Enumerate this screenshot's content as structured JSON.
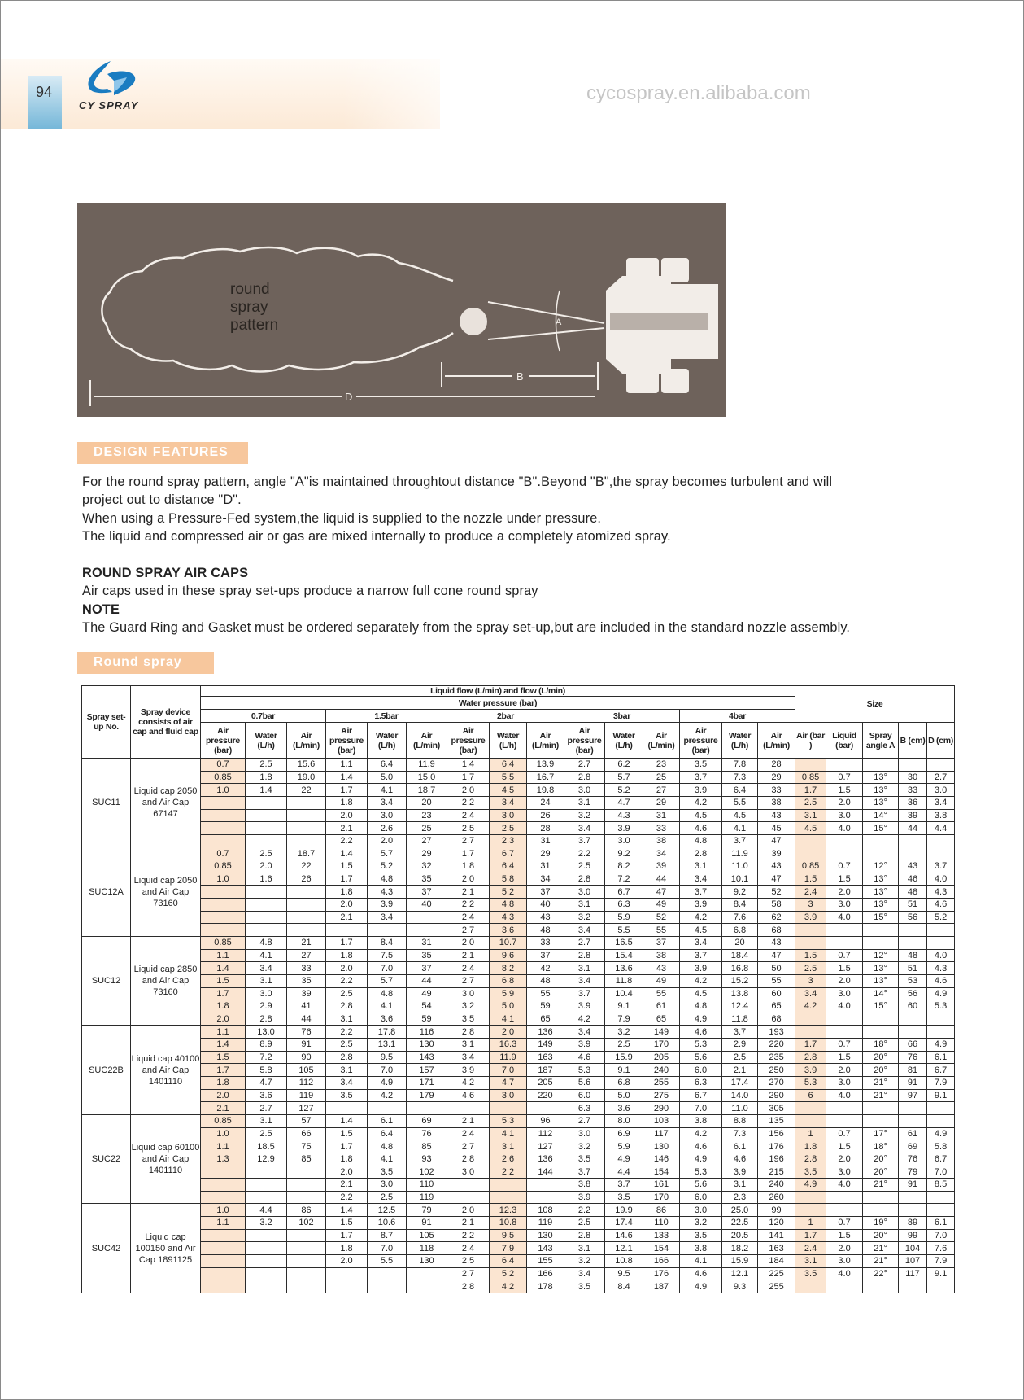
{
  "header": {
    "page_number": "94",
    "brand": "CY SPRAY",
    "brand_color": "#1a7cc1"
  },
  "diagram": {
    "caption": [
      "round",
      "spray",
      "pattern"
    ],
    "angle_label": "A",
    "distance_b_label": "B",
    "distance_d_label": "D",
    "background": "#6e625b"
  },
  "design_features": {
    "badge": "DESIGN FEATURES",
    "lines": [
      "For the round spray pattern, angle \"A\"is maintained throughtout  distance \"B\".Beyond \"B\",the spray becomes turbulent and will",
      "project out to distance \"D\".",
      "When using a Pressure-Fed system,the liquid is supplied to the nozzle under pressure.",
      "The liquid and compressed air or gas are mixed internally to produce a completely atomized spray."
    ]
  },
  "air_caps": {
    "heading": "ROUND SPRAY AIR CAPS",
    "text": "Air caps used in these spray set-ups produce a narrow full cone round spray"
  },
  "note": {
    "heading": "NOTE",
    "text": "The Guard Ring and Gasket must be ordered separately from the spray set-up,but are included in the standard nozzle assembly."
  },
  "round_spray": {
    "badge": "Round spray"
  },
  "watermark": "cycospray.en.alibaba.com",
  "table": {
    "col_setup": "Spray set-up No.",
    "col_device": "Spray device consists of air cap and fluid cap",
    "title": "Liquid flow (L/min) and flow (L/min)",
    "subtitle": "Water pressure (bar)",
    "size_title": "Size",
    "pressures": [
      "0.7bar",
      "1.5bar",
      "2bar",
      "3bar",
      "4bar"
    ],
    "sub_headers": [
      "Air pressure (bar)",
      "Water (L/h)",
      "Air (L/min)"
    ],
    "size_headers": [
      "Air (bar )",
      "Liquid (bar)",
      "Spray angle A",
      "B (cm)",
      "D (cm)"
    ],
    "highlight_color": "#fbe5d1",
    "groups": [
      {
        "id": "SUC11",
        "device": "Liquid cap 2050 and Air Cap 67147",
        "rows": [
          [
            "0.7",
            "2.5",
            "15.6",
            "1.1",
            "6.4",
            "11.9",
            "1.4",
            "6.4",
            "13.9",
            "2.7",
            "6.2",
            "23",
            "3.5",
            "7.8",
            "28",
            "",
            "",
            "",
            "",
            ""
          ],
          [
            "0.85",
            "1.8",
            "19.0",
            "1.4",
            "5.0",
            "15.0",
            "1.7",
            "5.5",
            "16.7",
            "2.8",
            "5.7",
            "25",
            "3.7",
            "7.3",
            "29",
            "0.85",
            "0.7",
            "13°",
            "30",
            "2.7"
          ],
          [
            "1.0",
            "1.4",
            "22",
            "1.7",
            "4.1",
            "18.7",
            "2.0",
            "4.5",
            "19.8",
            "3.0",
            "5.2",
            "27",
            "3.9",
            "6.4",
            "33",
            "1.7",
            "1.5",
            "13°",
            "33",
            "3.0"
          ],
          [
            "",
            "",
            "",
            "1.8",
            "3.4",
            "20",
            "2.2",
            "3.4",
            "24",
            "3.1",
            "4.7",
            "29",
            "4.2",
            "5.5",
            "38",
            "2.5",
            "2.0",
            "13°",
            "36",
            "3.4"
          ],
          [
            "",
            "",
            "",
            "2.0",
            "3.0",
            "23",
            "2.4",
            "3.0",
            "26",
            "3.2",
            "4.3",
            "31",
            "4.5",
            "4.5",
            "43",
            "3.1",
            "3.0",
            "14°",
            "39",
            "3.8"
          ],
          [
            "",
            "",
            "",
            "2.1",
            "2.6",
            "25",
            "2.5",
            "2.5",
            "28",
            "3.4",
            "3.9",
            "33",
            "4.6",
            "4.1",
            "45",
            "4.5",
            "4.0",
            "15°",
            "44",
            "4.4"
          ],
          [
            "",
            "",
            "",
            "2.2",
            "2.0",
            "27",
            "2.7",
            "2.3",
            "31",
            "3.7",
            "3.0",
            "38",
            "4.8",
            "3.7",
            "47",
            "",
            "",
            "",
            "",
            ""
          ]
        ]
      },
      {
        "id": "SUC12A",
        "device": "Liquid cap 2050 and Air Cap 73160",
        "rows": [
          [
            "0.7",
            "2.5",
            "18.7",
            "1.4",
            "5.7",
            "29",
            "1.7",
            "6.7",
            "29",
            "2.2",
            "9.2",
            "34",
            "2.8",
            "11.9",
            "39",
            "",
            "",
            "",
            "",
            ""
          ],
          [
            "0.85",
            "2.0",
            "22",
            "1.5",
            "5.2",
            "32",
            "1.8",
            "6.4",
            "31",
            "2.5",
            "8.2",
            "39",
            "3.1",
            "11.0",
            "43",
            "0.85",
            "0.7",
            "12°",
            "43",
            "3.7"
          ],
          [
            "1.0",
            "1.6",
            "26",
            "1.7",
            "4.8",
            "35",
            "2.0",
            "5.8",
            "34",
            "2.8",
            "7.2",
            "44",
            "3.4",
            "10.1",
            "47",
            "1.5",
            "1.5",
            "13°",
            "46",
            "4.0"
          ],
          [
            "",
            "",
            "",
            "1.8",
            "4.3",
            "37",
            "2.1",
            "5.2",
            "37",
            "3.0",
            "6.7",
            "47",
            "3.7",
            "9.2",
            "52",
            "2.4",
            "2.0",
            "13°",
            "48",
            "4.3"
          ],
          [
            "",
            "",
            "",
            "2.0",
            "3.9",
            "40",
            "2.2",
            "4.8",
            "40",
            "3.1",
            "6.3",
            "49",
            "3.9",
            "8.4",
            "58",
            "3",
            "3.0",
            "13°",
            "51",
            "4.6"
          ],
          [
            "",
            "",
            "",
            "2.1",
            "3.4",
            "",
            "2.4",
            "4.3",
            "43",
            "3.2",
            "5.9",
            "52",
            "4.2",
            "7.6",
            "62",
            "3.9",
            "4.0",
            "15°",
            "56",
            "5.2"
          ],
          [
            "",
            "",
            "",
            "",
            "",
            "",
            "2.7",
            "3.6",
            "48",
            "3.4",
            "5.5",
            "55",
            "4.5",
            "6.8",
            "68",
            "",
            "",
            "",
            "",
            ""
          ]
        ]
      },
      {
        "id": "SUC12",
        "device": "Liquid cap 2850 and Air Cap 73160",
        "rows": [
          [
            "0.85",
            "4.8",
            "21",
            "1.7",
            "8.4",
            "31",
            "2.0",
            "10.7",
            "33",
            "2.7",
            "16.5",
            "37",
            "3.4",
            "20",
            "43",
            "",
            "",
            "",
            "",
            ""
          ],
          [
            "1.1",
            "4.1",
            "27",
            "1.8",
            "7.5",
            "35",
            "2.1",
            "9.6",
            "37",
            "2.8",
            "15.4",
            "38",
            "3.7",
            "18.4",
            "47",
            "1.5",
            "0.7",
            "12°",
            "48",
            "4.0"
          ],
          [
            "1.4",
            "3.4",
            "33",
            "2.0",
            "7.0",
            "37",
            "2.4",
            "8.2",
            "42",
            "3.1",
            "13.6",
            "43",
            "3.9",
            "16.8",
            "50",
            "2.5",
            "1.5",
            "13°",
            "51",
            "4.3"
          ],
          [
            "1.5",
            "3.1",
            "35",
            "2.2",
            "5.7",
            "44",
            "2.7",
            "6.8",
            "48",
            "3.4",
            "11.8",
            "49",
            "4.2",
            "15.2",
            "55",
            "3",
            "2.0",
            "13°",
            "53",
            "4.6"
          ],
          [
            "1.7",
            "3.0",
            "39",
            "2.5",
            "4.8",
            "49",
            "3.0",
            "5.9",
            "55",
            "3.7",
            "10.4",
            "55",
            "4.5",
            "13.8",
            "60",
            "3.4",
            "3.0",
            "14°",
            "56",
            "4.9"
          ],
          [
            "1.8",
            "2.9",
            "41",
            "2.8",
            "4.1",
            "54",
            "3.2",
            "5.0",
            "59",
            "3.9",
            "9.1",
            "61",
            "4.8",
            "12.4",
            "65",
            "4.2",
            "4.0",
            "15°",
            "60",
            "5.3"
          ],
          [
            "2.0",
            "2.8",
            "44",
            "3.1",
            "3.6",
            "59",
            "3.5",
            "4.1",
            "65",
            "4.2",
            "7.9",
            "65",
            "4.9",
            "11.8",
            "68",
            "",
            "",
            "",
            "",
            ""
          ]
        ]
      },
      {
        "id": "SUC22B",
        "device": "Liquid cap 40100 and Air Cap 1401110",
        "rows": [
          [
            "1.1",
            "13.0",
            "76",
            "2.2",
            "17.8",
            "116",
            "2.8",
            "2.0",
            "136",
            "3.4",
            "3.2",
            "149",
            "4.6",
            "3.7",
            "193",
            "",
            "",
            "",
            "",
            ""
          ],
          [
            "1.4",
            "8.9",
            "91",
            "2.5",
            "13.1",
            "130",
            "3.1",
            "16.3",
            "149",
            "3.9",
            "2.5",
            "170",
            "5.3",
            "2.9",
            "220",
            "1.7",
            "0.7",
            "18°",
            "66",
            "4.9"
          ],
          [
            "1.5",
            "7.2",
            "90",
            "2.8",
            "9.5",
            "143",
            "3.4",
            "11.9",
            "163",
            "4.6",
            "15.9",
            "205",
            "5.6",
            "2.5",
            "235",
            "2.8",
            "1.5",
            "20°",
            "76",
            "6.1"
          ],
          [
            "1.7",
            "5.8",
            "105",
            "3.1",
            "7.0",
            "157",
            "3.9",
            "7.0",
            "187",
            "5.3",
            "9.1",
            "240",
            "6.0",
            "2.1",
            "250",
            "3.9",
            "2.0",
            "20°",
            "81",
            "6.7"
          ],
          [
            "1.8",
            "4.7",
            "112",
            "3.4",
            "4.9",
            "171",
            "4.2",
            "4.7",
            "205",
            "5.6",
            "6.8",
            "255",
            "6.3",
            "17.4",
            "270",
            "5.3",
            "3.0",
            "21°",
            "91",
            "7.9"
          ],
          [
            "2.0",
            "3.6",
            "119",
            "3.5",
            "4.2",
            "179",
            "4.6",
            "3.0",
            "220",
            "6.0",
            "5.0",
            "275",
            "6.7",
            "14.0",
            "290",
            "6",
            "4.0",
            "21°",
            "97",
            "9.1"
          ],
          [
            "2.1",
            "2.7",
            "127",
            "",
            "",
            "",
            "",
            "",
            "",
            "6.3",
            "3.6",
            "290",
            "7.0",
            "11.0",
            "305",
            "",
            "",
            "",
            "",
            ""
          ]
        ]
      },
      {
        "id": "SUC22",
        "device": "Liquid cap 60100 and Air Cap 1401110",
        "rows": [
          [
            "0.85",
            "3.1",
            "57",
            "1.4",
            "6.1",
            "69",
            "2.1",
            "5.3",
            "96",
            "2.7",
            "8.0",
            "103",
            "3.8",
            "8.8",
            "135",
            "",
            "",
            "",
            "",
            ""
          ],
          [
            "1.0",
            "2.5",
            "66",
            "1.5",
            "6.4",
            "76",
            "2.4",
            "4.1",
            "112",
            "3.0",
            "6.9",
            "117",
            "4.2",
            "7.3",
            "156",
            "1",
            "0.7",
            "17°",
            "61",
            "4.9"
          ],
          [
            "1.1",
            "18.5",
            "75",
            "1.7",
            "4.8",
            "85",
            "2.7",
            "3.1",
            "127",
            "3.2",
            "5.9",
            "130",
            "4.6",
            "6.1",
            "176",
            "1.8",
            "1.5",
            "18°",
            "69",
            "5.8"
          ],
          [
            "1.3",
            "12.9",
            "85",
            "1.8",
            "4.1",
            "93",
            "2.8",
            "2.6",
            "136",
            "3.5",
            "4.9",
            "146",
            "4.9",
            "4.6",
            "196",
            "2.8",
            "2.0",
            "20°",
            "76",
            "6.7"
          ],
          [
            "",
            "",
            "",
            "2.0",
            "3.5",
            "102",
            "3.0",
            "2.2",
            "144",
            "3.7",
            "4.4",
            "154",
            "5.3",
            "3.9",
            "215",
            "3.5",
            "3.0",
            "20°",
            "79",
            "7.0"
          ],
          [
            "",
            "",
            "",
            "2.1",
            "3.0",
            "110",
            "",
            "",
            "",
            "3.8",
            "3.7",
            "161",
            "5.6",
            "3.1",
            "240",
            "4.9",
            "4.0",
            "21°",
            "91",
            "8.5"
          ],
          [
            "",
            "",
            "",
            "2.2",
            "2.5",
            "119",
            "",
            "",
            "",
            "3.9",
            "3.5",
            "170",
            "6.0",
            "2.3",
            "260",
            "",
            "",
            "",
            "",
            ""
          ]
        ]
      },
      {
        "id": "SUC42",
        "device": "Liquid cap 100150 and Air Cap 1891125",
        "rows": [
          [
            "1.0",
            "4.4",
            "86",
            "1.4",
            "12.5",
            "79",
            "2.0",
            "12.3",
            "108",
            "2.2",
            "19.9",
            "86",
            "3.0",
            "25.0",
            "99",
            "",
            "",
            "",
            "",
            ""
          ],
          [
            "1.1",
            "3.2",
            "102",
            "1.5",
            "10.6",
            "91",
            "2.1",
            "10.8",
            "119",
            "2.5",
            "17.4",
            "110",
            "3.2",
            "22.5",
            "120",
            "1",
            "0.7",
            "19°",
            "89",
            "6.1"
          ],
          [
            "",
            "",
            "",
            "1.7",
            "8.7",
            "105",
            "2.2",
            "9.5",
            "130",
            "2.8",
            "14.6",
            "133",
            "3.5",
            "20.5",
            "141",
            "1.7",
            "1.5",
            "20°",
            "99",
            "7.0"
          ],
          [
            "",
            "",
            "",
            "1.8",
            "7.0",
            "118",
            "2.4",
            "7.9",
            "143",
            "3.1",
            "12.1",
            "154",
            "3.8",
            "18.2",
            "163",
            "2.4",
            "2.0",
            "21°",
            "104",
            "7.6"
          ],
          [
            "",
            "",
            "",
            "2.0",
            "5.5",
            "130",
            "2.5",
            "6.4",
            "155",
            "3.2",
            "10.8",
            "166",
            "4.1",
            "15.9",
            "184",
            "3.1",
            "3.0",
            "21°",
            "107",
            "7.9"
          ],
          [
            "",
            "",
            "",
            "",
            "",
            "",
            "2.7",
            "5.2",
            "166",
            "3.4",
            "9.5",
            "176",
            "4.6",
            "12.1",
            "225",
            "3.5",
            "4.0",
            "22°",
            "117",
            "9.1"
          ],
          [
            "",
            "",
            "",
            "",
            "",
            "",
            "2.8",
            "4.2",
            "178",
            "3.5",
            "8.4",
            "187",
            "4.9",
            "9.3",
            "255",
            "",
            "",
            "",
            "",
            ""
          ]
        ]
      }
    ]
  }
}
